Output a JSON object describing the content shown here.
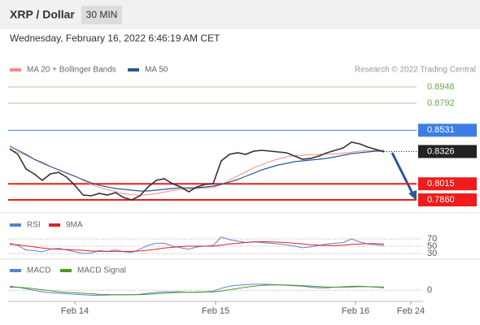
{
  "chart_data": [
    {
      "type": "line",
      "title": "XRP / Dollar",
      "timeframe": "30 MIN",
      "subtitle": "Wednesday, February 16, 2022 6:46:19 AM CET",
      "source": "Research © 2022 Trading Central",
      "xlim": [
        0,
        50
      ],
      "xticks": [
        {
          "value": 8,
          "label": "Feb 14"
        },
        {
          "value": 25.3,
          "label": "Feb 15"
        },
        {
          "value": 42.5,
          "label": "Feb 16"
        },
        {
          "value": 49.3,
          "label": "Feb 24"
        }
      ],
      "ylim": [
        0.7735,
        0.9238
      ],
      "color": "#333333",
      "values": [
        0.8353,
        0.8299,
        0.8158,
        0.8111,
        0.8048,
        0.8111,
        0.8126,
        0.8079,
        0.8001,
        0.7907,
        0.7899,
        0.7923,
        0.7907,
        0.793,
        0.7883,
        0.786,
        0.7899,
        0.7985,
        0.8048,
        0.8064,
        0.8017,
        0.7985,
        0.7938,
        0.7985,
        0.8009,
        0.8017,
        0.8236,
        0.8299,
        0.8314,
        0.8299,
        0.833,
        0.8338,
        0.833,
        0.8322,
        0.8314,
        0.8283,
        0.8252,
        0.826,
        0.8283,
        0.8314,
        0.8338,
        0.8361,
        0.8416,
        0.84,
        0.8369,
        0.8346,
        0.8322
      ],
      "series": [
        {
          "name": "MA 20 + Bollinger Bands",
          "color": "#f28b82",
          "values": [
            0.834,
            0.832,
            0.829,
            0.825,
            0.821,
            0.818,
            0.815,
            0.812,
            0.809,
            0.805,
            0.801,
            0.798,
            0.796,
            0.794,
            0.792,
            0.791,
            0.7905,
            0.791,
            0.792,
            0.7935,
            0.795,
            0.796,
            0.7965,
            0.797,
            0.7975,
            0.798,
            0.801,
            0.805,
            0.809,
            0.813,
            0.817,
            0.82,
            0.823,
            0.8255,
            0.8275,
            0.8285,
            0.829,
            0.8295,
            0.8298,
            0.83,
            0.8305,
            0.831,
            0.832,
            0.833,
            0.8335,
            0.8338,
            0.834
          ]
        },
        {
          "name": "MA 50",
          "color": "#2b5797",
          "values": [
            0.8377,
            0.8338,
            0.8299,
            0.8252,
            0.822,
            0.8181,
            0.815,
            0.8118,
            0.8087,
            0.8056,
            0.8024,
            0.8001,
            0.7985,
            0.797,
            0.7962,
            0.7954,
            0.7946,
            0.7946,
            0.7954,
            0.7962,
            0.797,
            0.7977,
            0.7977,
            0.7977,
            0.7985,
            0.7993,
            0.8009,
            0.8032,
            0.8056,
            0.8087,
            0.8118,
            0.815,
            0.8173,
            0.8197,
            0.8212,
            0.8228,
            0.8236,
            0.8244,
            0.8252,
            0.826,
            0.8275,
            0.8291,
            0.8306,
            0.8314,
            0.8322,
            0.833,
            0.833
          ]
        }
      ],
      "levels": [
        {
          "value": 0.8948,
          "label": "0.8948",
          "color": "#6aa84f",
          "tag": false
        },
        {
          "value": 0.8792,
          "label": "0.8792",
          "color": "#6aa84f",
          "tag": false
        },
        {
          "value": 0.8531,
          "label": "0.8531",
          "color": "#3d7ee6",
          "tag": true
        },
        {
          "value": 0.8326,
          "label": "0.8326",
          "color": "#222222",
          "tag": true
        },
        {
          "value": 0.8015,
          "label": "0.8015",
          "color": "#ee1c1c",
          "tag": true
        },
        {
          "value": 0.786,
          "label": "0.7860",
          "color": "#ee1c1c",
          "tag": true
        }
      ]
    },
    {
      "type": "line",
      "ylim": [
        17,
        92
      ],
      "yticks": [
        70,
        50,
        30
      ],
      "series": [
        {
          "name": "RSI",
          "color": "#5b7fd6",
          "values": [
            58,
            52,
            40,
            38,
            35,
            42,
            44,
            40,
            35,
            30,
            32,
            38,
            36,
            40,
            35,
            33,
            42,
            52,
            58,
            58,
            50,
            46,
            42,
            48,
            50,
            52,
            75,
            68,
            64,
            60,
            62,
            60,
            58,
            56,
            54,
            50,
            46,
            48,
            52,
            56,
            58,
            60,
            70,
            62,
            56,
            54,
            52
          ]
        },
        {
          "name": "9MA",
          "color": "#e02020",
          "values": [
            55,
            54,
            51,
            48,
            45,
            43,
            42,
            41,
            40,
            39,
            37,
            36,
            36,
            36,
            36,
            36,
            37,
            39,
            42,
            45,
            47,
            49,
            50,
            50,
            50,
            50,
            53,
            56,
            58,
            60,
            62,
            62,
            62,
            61,
            60,
            58,
            56,
            54,
            53,
            52,
            52,
            53,
            55,
            56,
            57,
            57,
            56
          ]
        }
      ]
    },
    {
      "type": "line",
      "ylim": [
        -0.012,
        0.014
      ],
      "yticks": [
        0
      ],
      "series": [
        {
          "name": "MACD",
          "color": "#5b7fd6",
          "values": [
            0.004,
            0.003,
            0.0015,
            0,
            -0.0015,
            -0.0025,
            -0.003,
            -0.0035,
            -0.004,
            -0.0045,
            -0.005,
            -0.005,
            -0.0048,
            -0.0045,
            -0.0045,
            -0.0045,
            -0.004,
            -0.003,
            -0.002,
            -0.0015,
            -0.0015,
            -0.0015,
            -0.002,
            -0.0018,
            -0.0015,
            -0.001,
            0.002,
            0.004,
            0.005,
            0.0055,
            0.006,
            0.006,
            0.0058,
            0.0055,
            0.005,
            0.0045,
            0.004,
            0.003,
            0.0025,
            0.0025,
            0.003,
            0.0035,
            0.004,
            0.004,
            0.0035,
            0.003,
            0.0025
          ]
        },
        {
          "name": "MACD Signal",
          "color": "#4c9a1c",
          "values": [
            0.003,
            0.003,
            0.0025,
            0.0015,
            0.0005,
            -0.0005,
            -0.0015,
            -0.002,
            -0.0025,
            -0.003,
            -0.0035,
            -0.004,
            -0.0043,
            -0.0045,
            -0.0045,
            -0.0045,
            -0.0044,
            -0.004,
            -0.0035,
            -0.003,
            -0.0025,
            -0.002,
            -0.002,
            -0.002,
            -0.0018,
            -0.0016,
            -0.0008,
            0.0005,
            0.0018,
            0.003,
            0.004,
            0.0048,
            0.0052,
            0.0054,
            0.0053,
            0.005,
            0.0046,
            0.0042,
            0.0037,
            0.0033,
            0.0031,
            0.0031,
            0.0033,
            0.0035,
            0.0035,
            0.0034,
            0.0032
          ]
        }
      ]
    }
  ]
}
